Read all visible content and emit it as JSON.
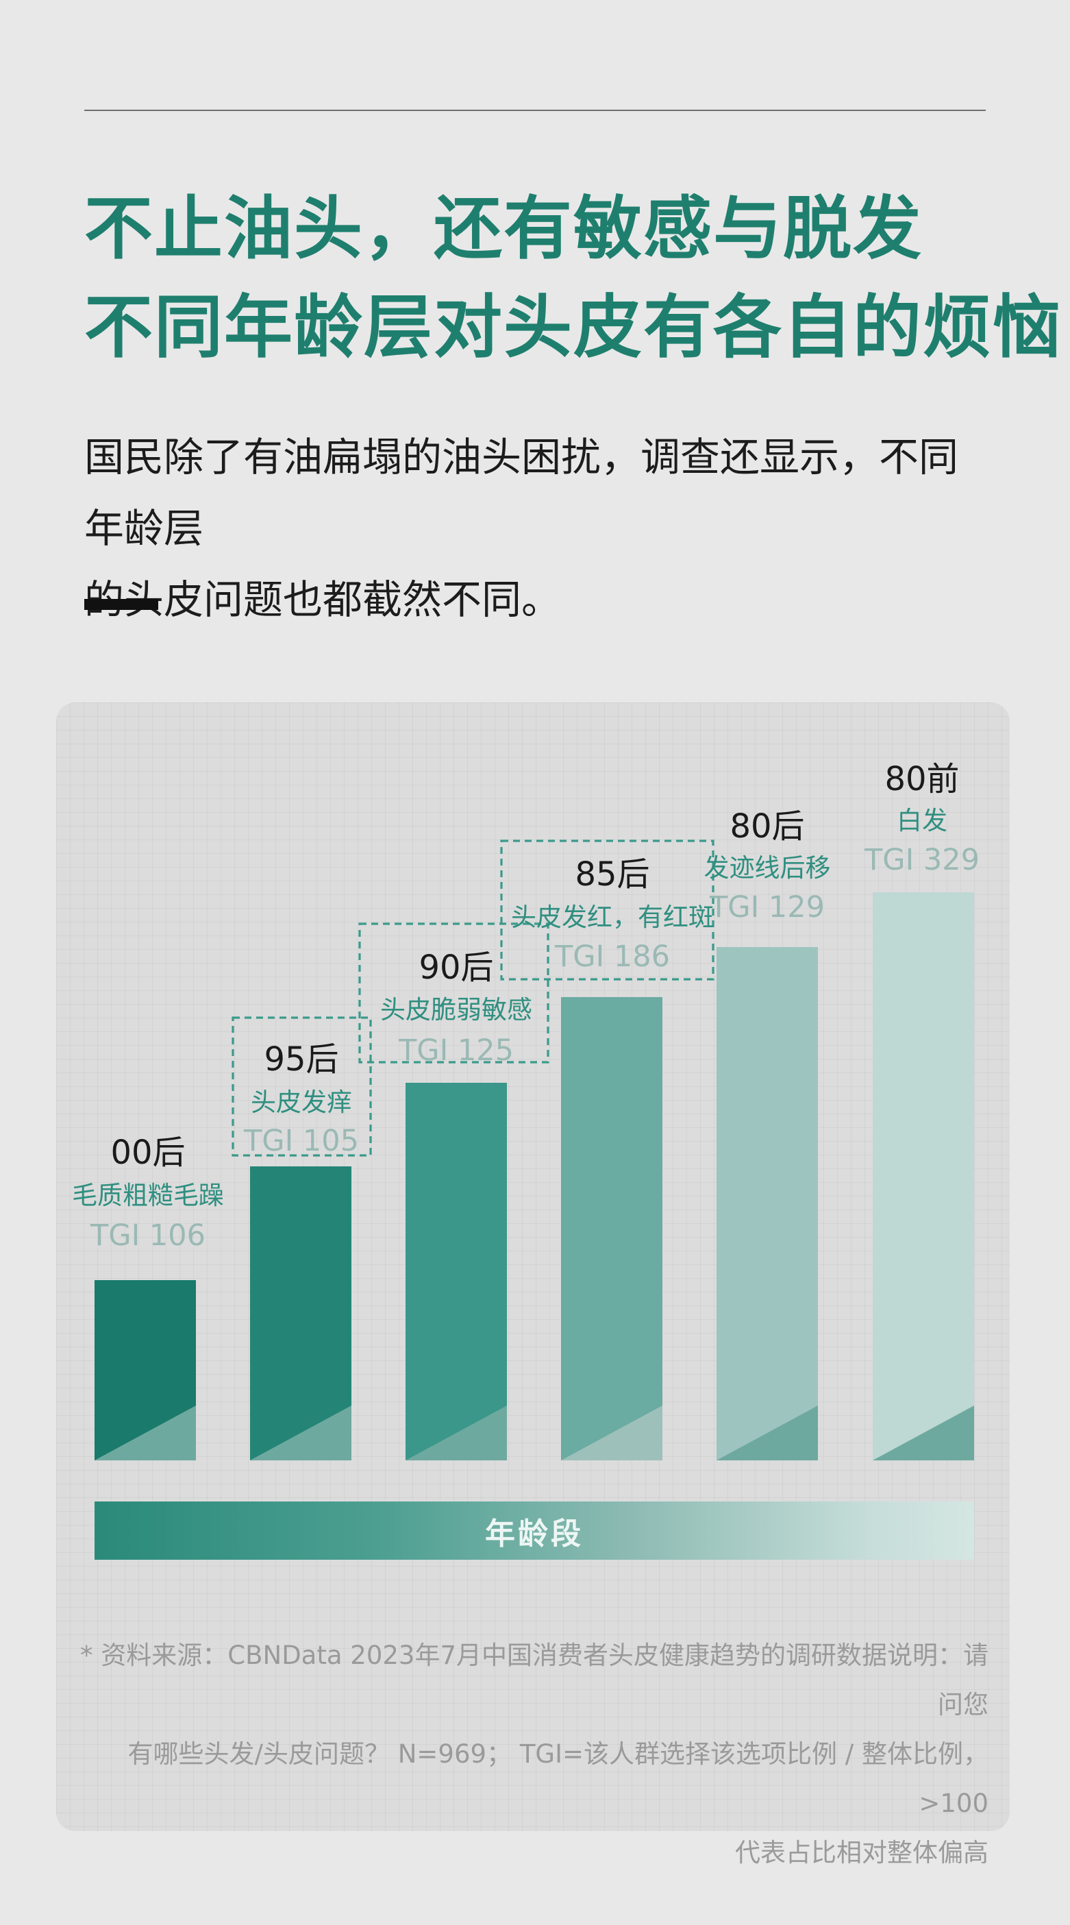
{
  "headline": {
    "line1": "不止油头，还有敏感与脱发",
    "line2": "不同年龄层对头皮有各自的烦恼"
  },
  "intro": "国民除了有油扁塌的油头困扰，调查还显示，不同年龄层\n的头皮问题也都截然不同。",
  "axis": {
    "label": "年龄段"
  },
  "note": "* 资料来源：CBNData 2023年7月中国消费者头皮健康趋势的调研数据说明：请问您\n有哪些头发/头皮问题？ N=969； TGI=该人群选择该选项比例 / 整体比例，>100\n代表占比相对整体偏高",
  "colors": {
    "title": "#1f7f6e",
    "issue_text": "#2f8f80",
    "tgi_text": "#9ab9b4",
    "dash": "#3b9a8c",
    "bars": [
      "#1a7a6b",
      "#248577",
      "#3a978a",
      "#6aaba2",
      "#9ec4bf",
      "#bed8d4"
    ],
    "bar_triangles": [
      "#6ea99f",
      "#6ea99f",
      "#6ea99f",
      "#9ec0ba",
      "#6ea99f",
      "#6ea99f"
    ]
  },
  "chart_data": {
    "type": "bar",
    "title": "",
    "xlabel": "年龄段",
    "ylabel": "",
    "categories": [
      "00后",
      "95后",
      "90后",
      "85后",
      "80后",
      "80前"
    ],
    "issues": [
      "毛质粗糙毛躁",
      "头皮发痒",
      "头皮脆弱敏感",
      "头皮发红，有红斑",
      "发迹线后移",
      "白发"
    ],
    "tgi_labels": [
      "TGI 106",
      "TGI 105",
      "TGI 125",
      "TGI 186",
      "TGI 129",
      "TGI 329"
    ],
    "values": [
      106,
      105,
      125,
      186,
      129,
      329
    ],
    "highlighted": [
      false,
      true,
      true,
      true,
      false,
      false
    ],
    "note": "Bar heights increase stepwise by age group; values are the printed TGI labels."
  }
}
